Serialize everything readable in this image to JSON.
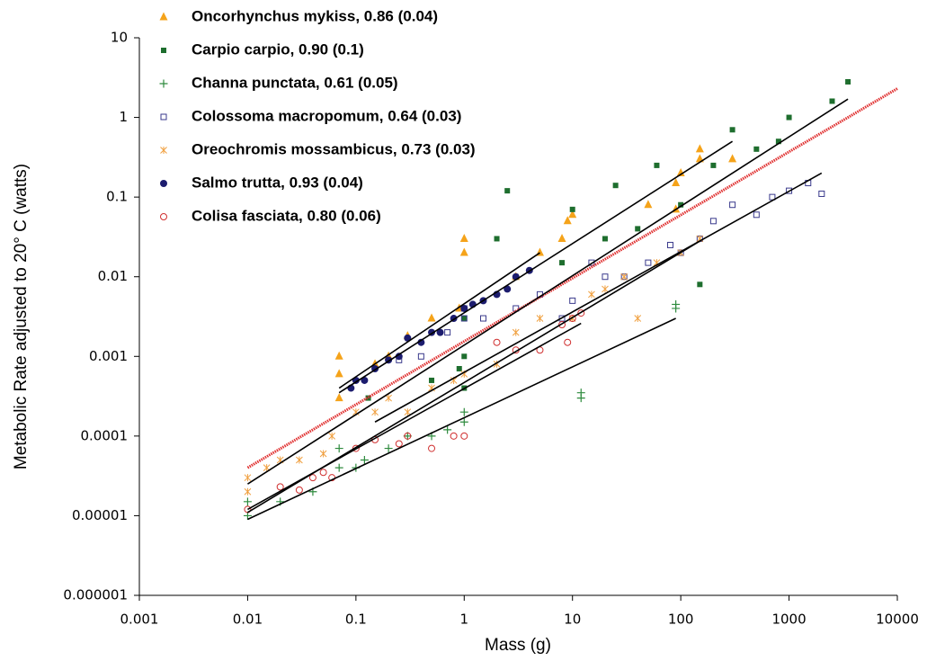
{
  "chart_data": {
    "type": "scatter",
    "xscale": "log",
    "yscale": "log",
    "xlabel": "Mass (g)",
    "ylabel": "Metabolic Rate adjusted to 20° C (watts)",
    "xlim": [
      0.001,
      10000
    ],
    "ylim": [
      1e-06,
      10
    ],
    "xticks": [
      0.001,
      0.01,
      0.1,
      1,
      10,
      100,
      1000,
      10000
    ],
    "yticks": [
      1e-06,
      1e-05,
      0.0001,
      0.001,
      0.01,
      0.1,
      1,
      10
    ],
    "series": [
      {
        "name": "Oncorhynchus mykiss, 0.86 (0.04)",
        "color": "#f5a31a",
        "marker": "triangle",
        "x": [
          0.07,
          0.07,
          0.07,
          0.15,
          0.2,
          0.3,
          0.5,
          0.9,
          1,
          1,
          3,
          5,
          8,
          9,
          10,
          50,
          90,
          90,
          100,
          150,
          150,
          300
        ],
        "y": [
          0.001,
          0.0006,
          0.0003,
          0.0008,
          0.001,
          0.0018,
          0.003,
          0.004,
          0.02,
          0.03,
          0.01,
          0.02,
          0.03,
          0.05,
          0.06,
          0.08,
          0.15,
          0.07,
          0.2,
          0.3,
          0.4,
          0.3
        ]
      },
      {
        "name": "Carpio carpio, 0.90 (0.1)",
        "color": "#1e6e2e",
        "marker": "square",
        "x": [
          0.13,
          0.5,
          0.9,
          1,
          1,
          1,
          2,
          2.5,
          3,
          8,
          10,
          20,
          25,
          40,
          60,
          100,
          150,
          200,
          300,
          500,
          800,
          1000,
          2500,
          3500
        ],
        "y": [
          0.0003,
          0.0005,
          0.0007,
          0.003,
          0.001,
          0.0004,
          0.03,
          0.12,
          0.01,
          0.015,
          0.07,
          0.03,
          0.14,
          0.04,
          0.25,
          0.08,
          0.008,
          0.25,
          0.7,
          0.4,
          0.5,
          1,
          1.6,
          2.8
        ]
      },
      {
        "name": "Channa punctata, 0.61 (0.05)",
        "color": "#2e8b3e",
        "marker": "plus",
        "x": [
          0.01,
          0.01,
          0.02,
          0.04,
          0.07,
          0.07,
          0.1,
          0.12,
          0.2,
          0.3,
          0.5,
          0.7,
          1,
          1,
          12,
          12,
          90,
          90
        ],
        "y": [
          1e-05,
          1.5e-05,
          1.5e-05,
          2e-05,
          7e-05,
          4e-05,
          4e-05,
          5e-05,
          7e-05,
          0.0001,
          0.0001,
          0.00012,
          0.0002,
          0.00015,
          0.00035,
          0.0003,
          0.0045,
          0.004
        ]
      },
      {
        "name": "Colossoma macropomum, 0.64 (0.03)",
        "color": "#3a3a8c",
        "marker": "open-square",
        "x": [
          0.25,
          0.4,
          0.7,
          1,
          1,
          1.5,
          3,
          5,
          8,
          10,
          15,
          20,
          30,
          50,
          80,
          100,
          150,
          200,
          300,
          500,
          700,
          1000,
          1500,
          2000
        ],
        "y": [
          0.0009,
          0.001,
          0.002,
          0.003,
          0.004,
          0.003,
          0.004,
          0.006,
          0.003,
          0.005,
          0.015,
          0.01,
          0.01,
          0.015,
          0.025,
          0.02,
          0.03,
          0.05,
          0.08,
          0.06,
          0.1,
          0.12,
          0.15,
          0.11
        ]
      },
      {
        "name": "Oreochromis mossambicus, 0.73 (0.03)",
        "color": "#f0a040",
        "marker": "asterisk",
        "x": [
          0.01,
          0.01,
          0.015,
          0.02,
          0.03,
          0.05,
          0.06,
          0.1,
          0.15,
          0.2,
          0.3,
          0.5,
          0.8,
          1,
          2,
          3,
          5,
          10,
          15,
          20,
          30,
          40,
          60,
          100,
          150
        ],
        "y": [
          3e-05,
          2e-05,
          4e-05,
          5e-05,
          5e-05,
          6e-05,
          0.0001,
          0.0002,
          0.0002,
          0.0003,
          0.0002,
          0.0004,
          0.0005,
          0.0006,
          0.0008,
          0.002,
          0.003,
          0.003,
          0.006,
          0.007,
          0.01,
          0.003,
          0.015,
          0.02,
          0.03
        ]
      },
      {
        "name": "Salmo trutta, 0.93 (0.04)",
        "color": "#1c1c6e",
        "marker": "circle",
        "x": [
          0.09,
          0.1,
          0.12,
          0.15,
          0.2,
          0.25,
          0.3,
          0.4,
          0.5,
          0.6,
          0.8,
          1,
          1.2,
          1.5,
          2,
          2.5,
          3,
          4
        ],
        "y": [
          0.0004,
          0.0005,
          0.0005,
          0.0007,
          0.0009,
          0.001,
          0.0017,
          0.0015,
          0.002,
          0.002,
          0.003,
          0.004,
          0.0045,
          0.005,
          0.006,
          0.007,
          0.01,
          0.012
        ]
      },
      {
        "name": "Colisa fasciata, 0.80 (0.06)",
        "color": "#d03030",
        "marker": "open-circle",
        "x": [
          0.01,
          0.02,
          0.03,
          0.04,
          0.05,
          0.06,
          0.1,
          0.15,
          0.25,
          0.3,
          0.5,
          0.8,
          1,
          2,
          3,
          5,
          8,
          9,
          10,
          12
        ],
        "y": [
          1.2e-05,
          2.3e-05,
          2.1e-05,
          3e-05,
          3.5e-05,
          3e-05,
          7e-05,
          9e-05,
          8e-05,
          0.0001,
          7e-05,
          0.0001,
          0.0001,
          0.0015,
          0.0012,
          0.0012,
          0.0025,
          0.0015,
          0.003,
          0.0035
        ]
      }
    ],
    "fit_lines": [
      {
        "color": "#e03030",
        "dashed": true,
        "x": [
          0.01,
          10000
        ],
        "y": [
          4e-05,
          2.3
        ]
      },
      {
        "color": "#000000",
        "x": [
          0.07,
          300
        ],
        "y": [
          0.00035,
          0.5
        ]
      },
      {
        "color": "#000000",
        "x": [
          0.01,
          3500
        ],
        "y": [
          2.5e-05,
          1.7
        ]
      },
      {
        "color": "#000000",
        "x": [
          0.01,
          90
        ],
        "y": [
          9e-06,
          0.003
        ]
      },
      {
        "color": "#000000",
        "x": [
          0.15,
          2000
        ],
        "y": [
          0.00015,
          0.2
        ]
      },
      {
        "color": "#000000",
        "x": [
          0.01,
          150
        ],
        "y": [
          1.1e-05,
          0.028
        ]
      },
      {
        "color": "#000000",
        "x": [
          0.07,
          5
        ],
        "y": [
          0.0004,
          0.02
        ]
      },
      {
        "color": "#000000",
        "x": [
          0.01,
          12
        ],
        "y": [
          1.2e-05,
          0.0026
        ]
      }
    ]
  }
}
